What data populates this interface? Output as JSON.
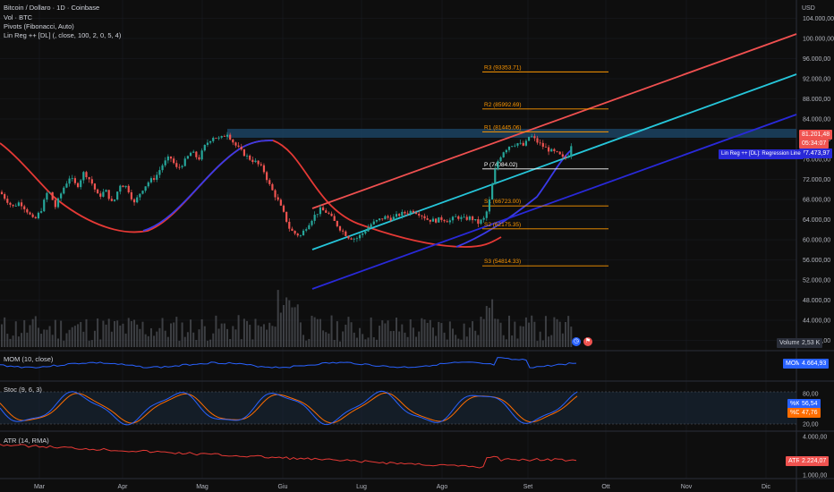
{
  "header": {
    "title": "Bitcoin / Dollaro · 1D · Coinbase",
    "vol_label": "Vol · BTC",
    "pivots_label": "Pivots (Fibonacci, Auto)",
    "linreg_label": "Lin Reg ++ [DL] (, close, 100, 2, 0, 5, 4)"
  },
  "price_axis": {
    "currency": "USD",
    "ticks": [
      "104.000,00",
      "100.000,00",
      "96.000,00",
      "92.000,00",
      "88.000,00",
      "84.000,00",
      "80.000,00",
      "76.000,00",
      "72.000,00",
      "68.000,00",
      "64.000,00",
      "60.000,00",
      "56.000,00",
      "52.000,00",
      "48.000,00",
      "44.000,00",
      "40.000,00"
    ],
    "current_price": "81.201,48",
    "countdown": "05:34:07",
    "linreg_value": "77.473,97",
    "linreg_tag": "Lin Reg ++ [DL]: Regression Line",
    "volume_label": "Volume",
    "volume_value": "2,53 K"
  },
  "pivots": [
    {
      "label": "R3 (93353.71)",
      "value": 93353.71,
      "color": "#ff9800"
    },
    {
      "label": "R2 (85992.69)",
      "value": 85992.69,
      "color": "#ff9800"
    },
    {
      "label": "R1 (81445.06)",
      "value": 81445.06,
      "color": "#ff9800"
    },
    {
      "label": "P (74084.02)",
      "value": 74084.02,
      "color": "#ffffff"
    },
    {
      "label": "S1 (66723.00)",
      "value": 66723.0,
      "color": "#ff9800"
    },
    {
      "label": "S2 (62175.35)",
      "value": 62175.35,
      "color": "#ff9800"
    },
    {
      "label": "S3 (54814.33)",
      "value": 54814.33,
      "color": "#ff9800"
    }
  ],
  "mom": {
    "label": "MOM (10, close)",
    "tag": "MOM",
    "value": "4.664,93"
  },
  "stoch": {
    "label": "Stoc (9, 6, 3)",
    "ticks": [
      "80,00",
      "20,00"
    ],
    "k_tag": "%K",
    "k_value": "56,54",
    "d_tag": "%D",
    "d_value": "47,76"
  },
  "atr": {
    "label": "ATR (14, RMA)",
    "ticks": [
      "4.000,00",
      "1.000,00"
    ],
    "tag": "ATR",
    "value": "2.224,07"
  },
  "time_axis": {
    "labels": [
      "Mar",
      "Apr",
      "Mag",
      "Giu",
      "Lug",
      "Ago",
      "Set",
      "Ott",
      "Nov",
      "Dic"
    ]
  },
  "colors": {
    "background": "#0e0e0e",
    "up": "#26a69a",
    "down": "#ef5350",
    "channel_upper": "#f05050",
    "channel_mid": "#26c6da",
    "channel_lower": "#2929d9",
    "ma_blue": "#3a3ae8",
    "ma_red": "#e53935",
    "band": "#1e4a6e"
  },
  "icons": [
    "clock-icon",
    "flag-icon"
  ]
}
